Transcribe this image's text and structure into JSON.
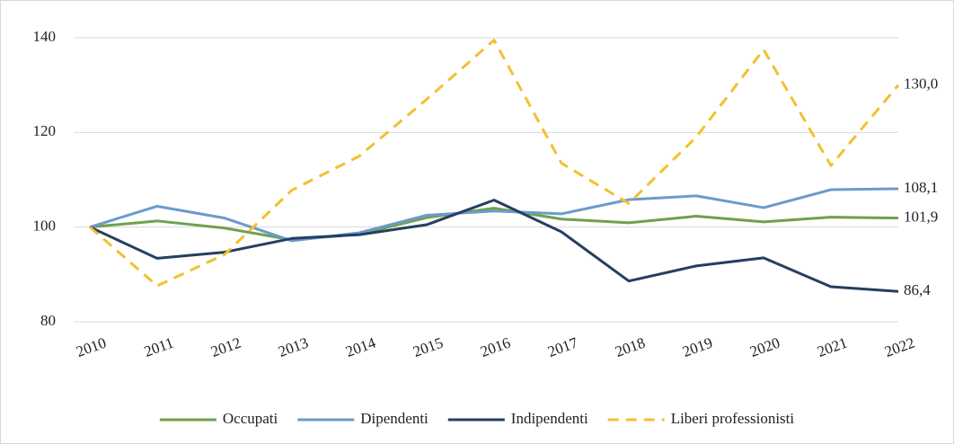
{
  "chart_data": {
    "type": "line",
    "categories": [
      "2010",
      "2011",
      "2012",
      "2013",
      "2014",
      "2015",
      "2016",
      "2017",
      "2018",
      "2019",
      "2020",
      "2021",
      "2022"
    ],
    "series": [
      {
        "name": "Occupati",
        "color": "#70a04c",
        "values": [
          100,
          101.3,
          99.8,
          97.3,
          98.5,
          102,
          104,
          101.7,
          100.9,
          102.3,
          101.1,
          102.1,
          101.9
        ],
        "value_labels": [
          null,
          null,
          null,
          null,
          null,
          null,
          null,
          null,
          null,
          null,
          null,
          null,
          "101,9"
        ]
      },
      {
        "name": "Dipendenti",
        "color": "#6b9bcb",
        "values": [
          100,
          104.4,
          101.9,
          97.1,
          98.8,
          102.5,
          103.4,
          102.8,
          105.8,
          106.6,
          104.1,
          107.9,
          108.1
        ],
        "value_labels": [
          null,
          null,
          null,
          null,
          null,
          null,
          null,
          null,
          null,
          null,
          null,
          null,
          "108,1"
        ]
      },
      {
        "name": "Indipendenti",
        "color": "#243f60",
        "values": [
          100,
          93.4,
          94.7,
          97.6,
          98.4,
          100.5,
          105.7,
          99,
          88.6,
          91.8,
          93.5,
          87.4,
          86.4
        ],
        "value_labels": [
          null,
          null,
          null,
          null,
          null,
          null,
          null,
          null,
          null,
          null,
          null,
          null,
          "86,4"
        ]
      },
      {
        "name": "Liberi professionisti",
        "color": "#f2c12e",
        "dashed": true,
        "values": [
          100,
          87.6,
          94.2,
          107.8,
          115,
          127,
          139.5,
          113.5,
          105,
          119,
          137.5,
          113,
          130
        ],
        "value_labels": [
          null,
          null,
          null,
          null,
          null,
          null,
          null,
          null,
          null,
          null,
          null,
          null,
          "130,0"
        ]
      }
    ],
    "ylim": [
      80,
      140
    ],
    "yticks": [
      80,
      100,
      120,
      140
    ],
    "grid": true,
    "legend": "bottom"
  }
}
